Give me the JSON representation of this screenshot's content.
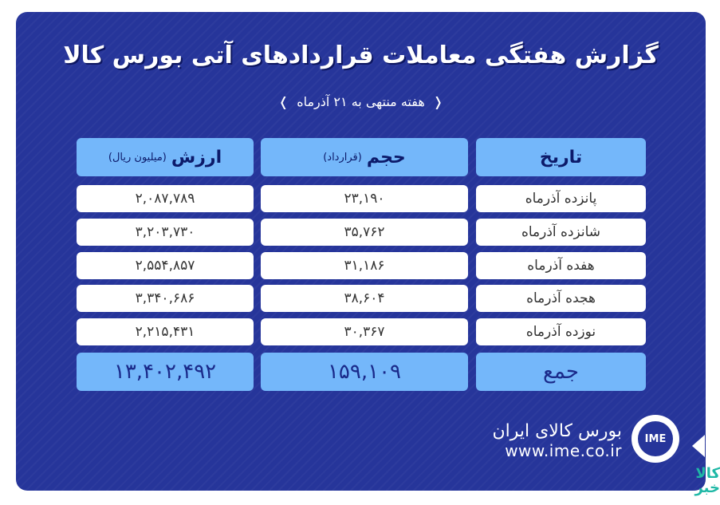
{
  "title": "گزارش هفتگی معاملات قراردادهای آتی بورس کالا",
  "subtitle": "هفته منتهی به ۲۱ آذرماه",
  "headers": {
    "date": "تاریخ",
    "volume": "حجم",
    "volume_unit": "(قرارداد)",
    "value": "ارزش",
    "value_unit": "(میلیون ریال)"
  },
  "rows": [
    {
      "date": "پانزده آذرماه",
      "volume": "۲۳,۱۹۰",
      "value": "۲,۰۸۷,۷۸۹"
    },
    {
      "date": "شانزده آذرماه",
      "volume": "۳۵,۷۶۲",
      "value": "۳,۲۰۳,۷۳۰"
    },
    {
      "date": "هفده آذرماه",
      "volume": "۳۱,۱۸۶",
      "value": "۲,۵۵۴,۸۵۷"
    },
    {
      "date": "هجده آذرماه",
      "volume": "۳۸,۶۰۴",
      "value": "۳,۳۴۰,۶۸۶"
    },
    {
      "date": "نوزده آذرماه",
      "volume": "۳۰,۳۶۷",
      "value": "۲,۲۱۵,۴۳۱"
    }
  ],
  "total": {
    "label": "جمع",
    "volume": "۱۵۹,۱۰۹",
    "value": "۱۳,۴۰۲,۴۹۲"
  },
  "brand": {
    "name": "بورس کالای ایران",
    "url": "www.ime.co.ir",
    "logo": "IME"
  },
  "watermark": "کالا خبر",
  "colors": {
    "background": "#26359a",
    "header": "#74b7fa",
    "row": "#ffffff"
  }
}
